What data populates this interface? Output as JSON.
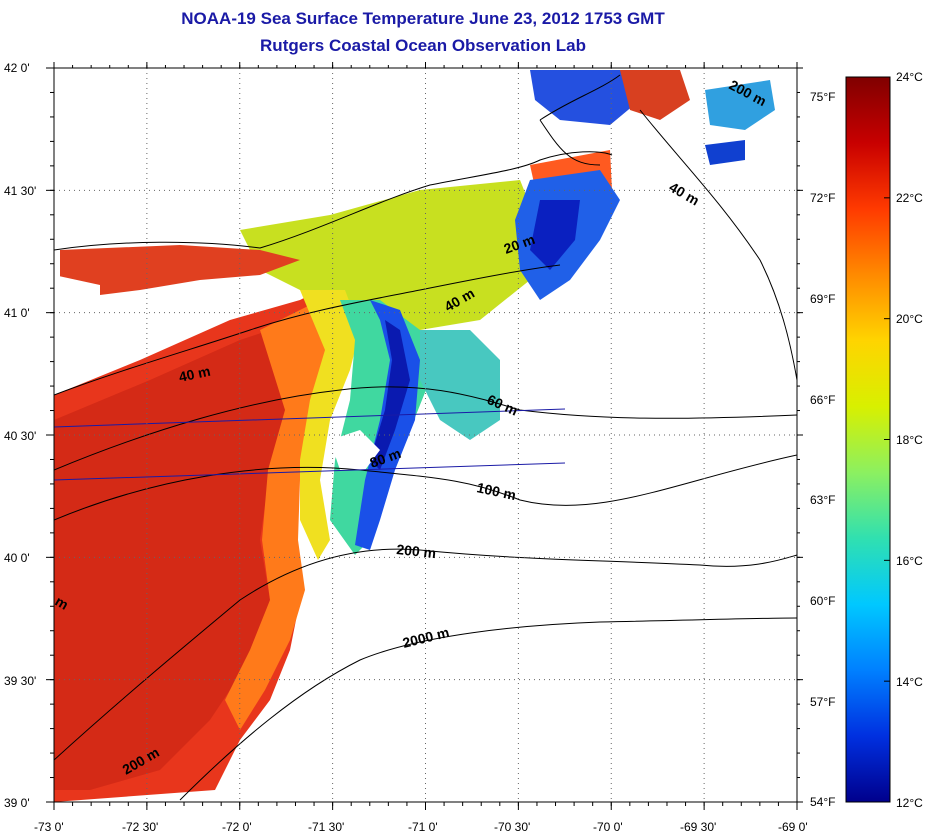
{
  "title": {
    "line1": "NOAA-19 Sea Surface Temperature June 23, 2012 1753 GMT",
    "line2": "Rutgers Coastal Ocean Observation Lab"
  },
  "map": {
    "lat_ticks": [
      "42 0'",
      "41 30'",
      "41 0'",
      "40 30'",
      "40 0'",
      "39 30'",
      "39 0'"
    ],
    "lon_ticks": [
      "-73 0'",
      "-72 30'",
      "-72 0'",
      "-71 30'",
      "-71 0'",
      "-70 30'",
      "-70 0'",
      "-69 30'",
      "-69 0'"
    ],
    "isobath_labels": [
      {
        "text": "40 m",
        "id": "iso-40-a"
      },
      {
        "text": "40 m",
        "id": "iso-40-b"
      },
      {
        "text": "40 m",
        "id": "iso-40-c"
      },
      {
        "text": "20 m",
        "id": "iso-20"
      },
      {
        "text": "60 m",
        "id": "iso-60"
      },
      {
        "text": "80 m",
        "id": "iso-80"
      },
      {
        "text": "100 m",
        "id": "iso-100"
      },
      {
        "text": "200 m",
        "id": "iso-200-a"
      },
      {
        "text": "200 m",
        "id": "iso-200-b"
      },
      {
        "text": "200 m",
        "id": "iso-200-c"
      },
      {
        "text": "2000 m",
        "id": "iso-2000"
      },
      {
        "text": "m",
        "id": "iso-frag"
      }
    ]
  },
  "colorbar": {
    "celsius": [
      "24°C",
      "22°C",
      "20°C",
      "18°C",
      "16°C",
      "14°C",
      "12°C"
    ],
    "fahrenheit": [
      "75°F",
      "72°F",
      "69°F",
      "66°F",
      "63°F",
      "60°F",
      "57°F",
      "54°F"
    ],
    "colors": [
      "#800000",
      "#c80000",
      "#ff3a00",
      "#ff8a00",
      "#ffd400",
      "#d8f000",
      "#8cf060",
      "#30e0b0",
      "#00c8ff",
      "#0080ff",
      "#0030e0",
      "#00008c"
    ]
  }
}
